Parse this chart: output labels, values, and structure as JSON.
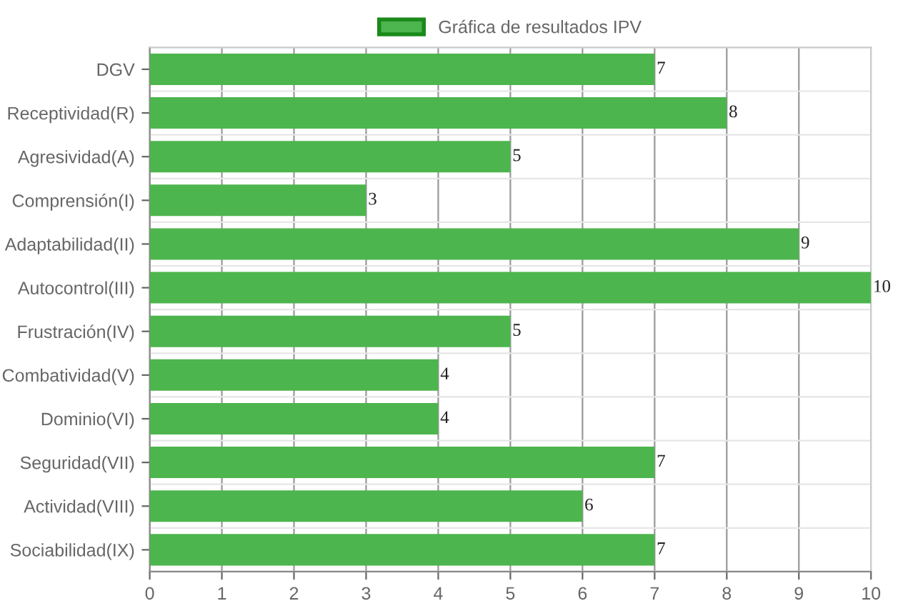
{
  "chart_data": {
    "type": "bar",
    "orientation": "horizontal",
    "categories": [
      "DGV",
      "Receptividad(R)",
      "Agresividad(A)",
      "Comprensión(I)",
      "Adaptabilidad(II)",
      "Autocontrol(III)",
      "Frustración(IV)",
      "Combatividad(V)",
      "Dominio(VI)",
      "Seguridad(VII)",
      "Actividad(VIII)",
      "Sociabilidad(IX)"
    ],
    "series": [
      {
        "name": "Gráfica de resultados IPV",
        "color": "#4db54d",
        "values": [
          7,
          8,
          5,
          3,
          9,
          10,
          5,
          4,
          4,
          7,
          6,
          7
        ]
      }
    ],
    "xlim": [
      0,
      10
    ],
    "xticks": [
      0,
      1,
      2,
      3,
      4,
      5,
      6,
      7,
      8,
      9,
      10
    ],
    "grid": true,
    "legend": "top",
    "data_labels": true
  }
}
